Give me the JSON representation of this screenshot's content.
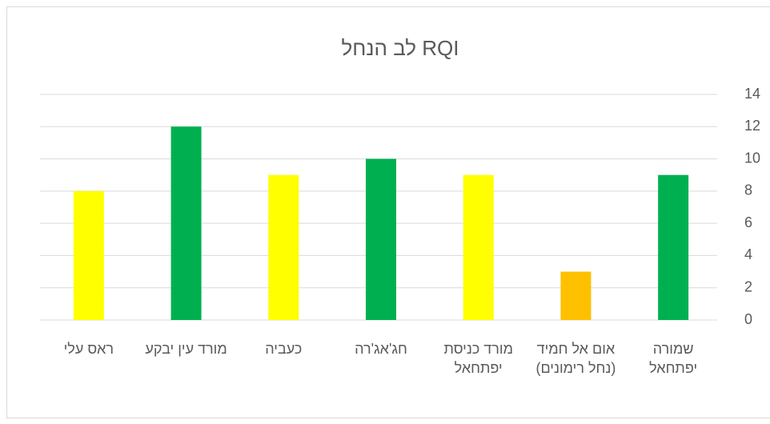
{
  "chart_data": {
    "type": "bar",
    "title": "לב הנחל RQI",
    "categories": [
      "שמורה יפתחאל",
      "אום אל חמיד (נחל רימונים)",
      "מורד כניסת יפתחאל",
      "חג'אג'רה",
      "כעביה",
      "מורד עין יבקע",
      "ראס עלי"
    ],
    "values": [
      9,
      3,
      9,
      10,
      9,
      12,
      8
    ],
    "colors": [
      "#00b050",
      "#ffc000",
      "#ffff00",
      "#00b050",
      "#ffff00",
      "#00b050",
      "#ffff00"
    ],
    "ylim": [
      0,
      14
    ],
    "yticks": [
      0,
      2,
      4,
      6,
      8,
      10,
      12,
      14
    ],
    "grid": true,
    "direction": "rtl"
  }
}
